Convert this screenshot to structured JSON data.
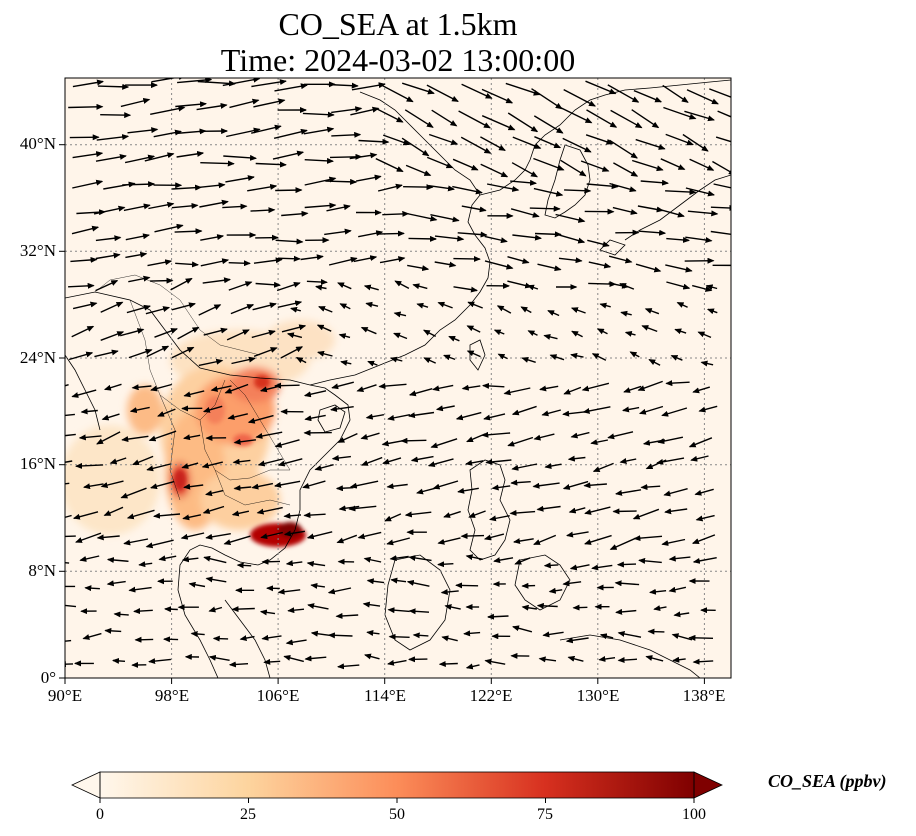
{
  "title_line1": "CO_SEA at 1.5km",
  "title_line2": "Time: 2024-03-02 13:00:00",
  "map": {
    "lon_range": [
      90,
      140
    ],
    "lat_range": [
      0,
      45
    ],
    "lon_ticks": [
      90,
      98,
      106,
      114,
      122,
      130,
      138
    ],
    "lat_ticks": [
      0,
      8,
      16,
      24,
      32,
      40
    ],
    "lon_tick_labels": [
      "90°E",
      "98°E",
      "106°E",
      "114°E",
      "122°E",
      "130°E",
      "138°E"
    ],
    "lat_tick_labels": [
      "0°",
      "8°N",
      "16°N",
      "24°N",
      "32°N",
      "40°N"
    ],
    "gridlines": true,
    "wind_vectors": true
  },
  "colorbar": {
    "label": "CO_SEA (ppbv)",
    "min": 0,
    "max": 100,
    "ticks": [
      "0",
      "25",
      "50",
      "75",
      "100"
    ],
    "colormap": "OrRd",
    "extend": "both"
  }
}
